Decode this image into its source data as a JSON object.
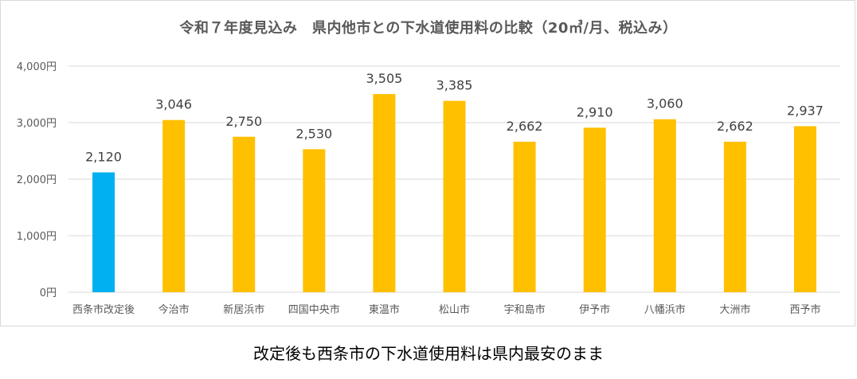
{
  "chart_data": {
    "type": "bar",
    "title": "令和７年度見込み　県内他市との下水道使用料の比較（20㎥/月、税込み）",
    "xlabel": "",
    "ylabel": "",
    "categories": [
      "西条市改定後",
      "今治市",
      "新居浜市",
      "四国中央市",
      "東温市",
      "松山市",
      "宇和島市",
      "伊予市",
      "八幡浜市",
      "大洲市",
      "西予市"
    ],
    "values": [
      2120,
      3046,
      2750,
      2530,
      3505,
      3385,
      2662,
      2910,
      3060,
      2662,
      2937
    ],
    "data_labels": [
      "2,120",
      "3,046",
      "2,750",
      "2,530",
      "3,505",
      "3,385",
      "2,662",
      "2,910",
      "3,060",
      "2,662",
      "2,937"
    ],
    "ylim": [
      0,
      4000
    ],
    "yticks": [
      0,
      1000,
      2000,
      3000,
      4000
    ],
    "ytick_labels": [
      "0円",
      "1,000円",
      "2,000円",
      "3,000円",
      "4,000円"
    ],
    "grid": true,
    "legend": "none",
    "colors": {
      "highlight": "#00B0F0",
      "default": "#FFC000",
      "grid": "#d9d9d9",
      "axis_text": "#595959"
    },
    "highlight_index": 0
  },
  "caption": "改定後も西条市の下水道使用料は県内最安のまま"
}
